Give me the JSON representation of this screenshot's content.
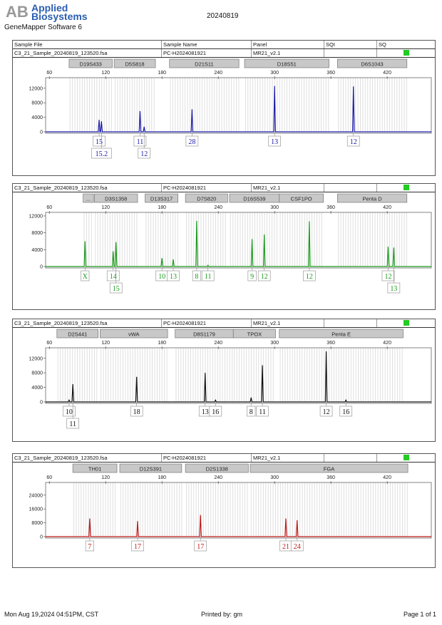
{
  "header": {
    "brand_line1": "Applied",
    "brand_line2": "Biosystems",
    "software": "GeneMapper Software 6",
    "title": "20240819"
  },
  "table_header": {
    "sample_file": "Sample File",
    "sample_name": "Sample Name",
    "panel": "Panel",
    "sqi": "SQI",
    "sq": "SQ"
  },
  "footer": {
    "date": "Mon Aug 19,2024 04:51PM, CST",
    "printed_by": "Printed by: gm",
    "page": "Page 1 of 1"
  },
  "colors": {
    "blue": "#1a1aa8",
    "green": "#1a9a1a",
    "black": "#111111",
    "red": "#c01818",
    "sq_ok": "#22cc22",
    "marker_fill": "#c8c8c8",
    "bin": "#dcdcdc"
  },
  "chart_data": [
    {
      "type": "line",
      "sample_file": "C3_21_Sample_20240819_123520.fsa",
      "sample_name": "PC-H2024081921",
      "panel": "MR21_v2.1",
      "color": "#1a1aa8",
      "xlim": [
        56,
        467
      ],
      "xticks": [
        60,
        120,
        180,
        240,
        300,
        360,
        420
      ],
      "ylim": [
        0,
        14500
      ],
      "yticks": [
        0,
        4000,
        8000,
        12000
      ],
      "markers": [
        {
          "name": "D19S433",
          "range": [
            81,
            127
          ]
        },
        {
          "name": "D5S818",
          "range": [
            129,
            173
          ]
        },
        {
          "name": "D21S11",
          "range": [
            188,
            262
          ]
        },
        {
          "name": "D18S51",
          "range": [
            268,
            358
          ]
        },
        {
          "name": "D6S1043",
          "range": [
            367,
            441
          ]
        }
      ],
      "peaks": [
        {
          "allele": "15",
          "size": 113,
          "height": 3300,
          "row": 0
        },
        {
          "allele": "15.2",
          "size": 115.5,
          "height": 2900,
          "row": 1
        },
        {
          "allele": "11",
          "size": 156.6,
          "height": 5700,
          "row": 0
        },
        {
          "allele": "12",
          "size": 161,
          "height": 1400,
          "row": 1
        },
        {
          "allele": "28",
          "size": 212,
          "height": 6200,
          "row": 0
        },
        {
          "allele": "13",
          "size": 300,
          "height": 12600,
          "row": 0
        },
        {
          "allele": "12",
          "size": 384,
          "height": 12500,
          "row": 0
        }
      ]
    },
    {
      "type": "line",
      "sample_file": "C3_21_Sample_20240819_123520.fsa",
      "sample_name": "PC-H2024081921",
      "panel": "MR21_v2.1",
      "color": "#1a9a1a",
      "xlim": [
        56,
        467
      ],
      "xticks": [
        60,
        120,
        180,
        240,
        300,
        360,
        420
      ],
      "ylim": [
        0,
        12500
      ],
      "yticks": [
        0,
        4000,
        8000,
        12000
      ],
      "markers": [
        {
          "name": "...",
          "range": [
            96,
            107
          ]
        },
        {
          "name": "D3S1358",
          "range": [
            108,
            154
          ]
        },
        {
          "name": "D13S317",
          "range": [
            162,
            197
          ]
        },
        {
          "name": "D7S820",
          "range": [
            205,
            250
          ]
        },
        {
          "name": "D16S539",
          "range": [
            252,
            305
          ]
        },
        {
          "name": "CSF1PO",
          "range": [
            305,
            352
          ]
        },
        {
          "name": "Penta D",
          "range": [
            367,
            441
          ]
        }
      ],
      "peaks": [
        {
          "allele": "X",
          "size": 98,
          "height": 6000,
          "row": 0
        },
        {
          "allele": "14",
          "size": 128,
          "height": 3600,
          "row": 0
        },
        {
          "allele": "15",
          "size": 131,
          "height": 5800,
          "row": 1
        },
        {
          "allele": "10",
          "size": 180,
          "height": 2000,
          "row": 0
        },
        {
          "allele": "13",
          "size": 192,
          "height": 1700,
          "row": 0
        },
        {
          "allele": "8",
          "size": 217,
          "height": 10800,
          "row": 0
        },
        {
          "allele": "11",
          "size": 229,
          "height": 300,
          "row": 0
        },
        {
          "allele": "9",
          "size": 276,
          "height": 6500,
          "row": 0
        },
        {
          "allele": "12",
          "size": 289,
          "height": 7600,
          "row": 0
        },
        {
          "allele": "12",
          "size": 337,
          "height": 10700,
          "row": 0
        },
        {
          "allele": "12",
          "size": 421,
          "height": 4700,
          "row": 0
        },
        {
          "allele": "13",
          "size": 427,
          "height": 4500,
          "row": 1
        }
      ]
    },
    {
      "type": "line",
      "sample_file": "C3_21_Sample_20240819_123520.fsa",
      "sample_name": "PC-H2024081921",
      "panel": "MR21_v2.1",
      "color": "#111111",
      "xlim": [
        56,
        467
      ],
      "xticks": [
        60,
        120,
        180,
        240,
        300,
        360,
        420
      ],
      "ylim": [
        0,
        14500
      ],
      "yticks": [
        0,
        4000,
        8000,
        12000
      ],
      "markers": [
        {
          "name": "D2S441",
          "range": [
            68,
            112
          ]
        },
        {
          "name": "vWA",
          "range": [
            114,
            186
          ]
        },
        {
          "name": "D8S1179",
          "range": [
            194,
            256
          ]
        },
        {
          "name": "TPOX",
          "range": [
            256,
            301
          ]
        },
        {
          "name": "Penta E",
          "range": [
            305,
            437
          ]
        }
      ],
      "peaks": [
        {
          "allele": "10",
          "size": 81,
          "height": 500,
          "row": 0
        },
        {
          "allele": "11",
          "size": 85,
          "height": 4900,
          "row": 1
        },
        {
          "allele": "18",
          "size": 153,
          "height": 6900,
          "row": 0
        },
        {
          "allele": "13",
          "size": 226,
          "height": 8000,
          "row": 0
        },
        {
          "allele": "16",
          "size": 237,
          "height": 500,
          "row": 0
        },
        {
          "allele": "8",
          "size": 275,
          "height": 1200,
          "row": 0
        },
        {
          "allele": "11",
          "size": 287,
          "height": 10100,
          "row": 0
        },
        {
          "allele": "12",
          "size": 355,
          "height": 13900,
          "row": 0
        },
        {
          "allele": "16",
          "size": 376,
          "height": 500,
          "row": 0
        }
      ]
    },
    {
      "type": "line",
      "sample_file": "C3_21_Sample_20240819_123520.fsa",
      "sample_name": "PC-H2024081921",
      "panel": "MR21_v2.1",
      "color": "#c01818",
      "xlim": [
        56,
        467
      ],
      "xticks": [
        60,
        120,
        180,
        240,
        300,
        360,
        420
      ],
      "ylim": [
        0,
        30500
      ],
      "yticks": [
        0,
        8000,
        16000,
        24000
      ],
      "markers": [
        {
          "name": "TH01",
          "range": [
            85,
            132
          ]
        },
        {
          "name": "D12S391",
          "range": [
            135,
            201
          ]
        },
        {
          "name": "D2S1338",
          "range": [
            205,
            272
          ]
        },
        {
          "name": "FGA",
          "range": [
            274,
            442
          ]
        }
      ],
      "peaks": [
        {
          "allele": "7",
          "size": 103,
          "height": 10500,
          "row": 0
        },
        {
          "allele": "17",
          "size": 154,
          "height": 9000,
          "row": 0
        },
        {
          "allele": "17",
          "size": 221,
          "height": 12500,
          "row": 0
        },
        {
          "allele": "21",
          "size": 312,
          "height": 10500,
          "row": 0
        },
        {
          "allele": "24",
          "size": 324,
          "height": 9500,
          "row": 0
        }
      ]
    }
  ]
}
